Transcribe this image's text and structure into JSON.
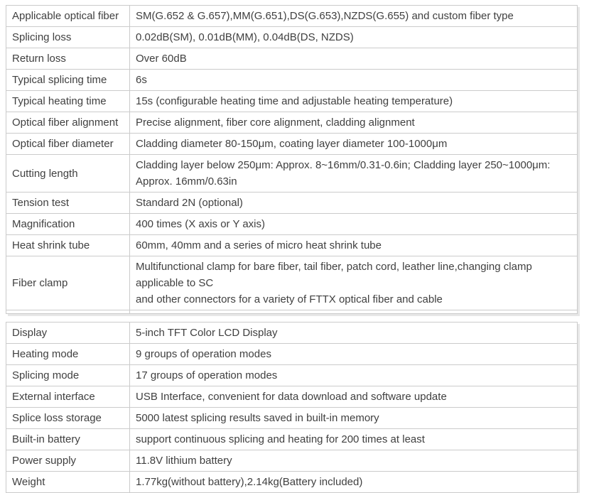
{
  "page": {
    "background": "#ffffff",
    "text_color": "#404040",
    "grid_border_color": "#cbcbcb",
    "outer_edge_color": "#e7e7e7"
  },
  "tables": [
    {
      "name": "splicing-specs-table",
      "trailing_spacer": true,
      "rows": [
        {
          "label": "Applicable optical fiber",
          "value": "SM(G.652 & G.657),MM(G.651),DS(G.653),NZDS(G.655) and custom fiber type"
        },
        {
          "label": "Splicing loss",
          "value": "0.02dB(SM), 0.01dB(MM), 0.04dB(DS, NZDS)"
        },
        {
          "label": "Return loss",
          "value": "Over 60dB"
        },
        {
          "label": "Typical splicing time",
          "value": "6s"
        },
        {
          "label": "Typical heating time",
          "value": "15s (configurable heating time and adjustable heating temperature)"
        },
        {
          "label": "Optical fiber alignment",
          "value": "Precise alignment, fiber core alignment, cladding alignment"
        },
        {
          "label": "Optical fiber diameter",
          "value": "Cladding diameter 80-150μm, coating layer diameter 100-1000μm"
        },
        {
          "label": "Cutting length",
          "value": "Cladding layer below 250μm: Approx. 8~16mm/0.31-0.6in; Cladding layer 250~1000μm:\nApprox. 16mm/0.63in"
        },
        {
          "label": "Tension test",
          "value": "Standard 2N (optional)"
        },
        {
          "label": "Magnification",
          "value": "400 times (X axis or Y axis)"
        },
        {
          "label": "Heat shrink tube",
          "value": "60mm, 40mm and a series of micro heat shrink tube"
        },
        {
          "label": "Fiber clamp",
          "value": "Multifunctional clamp for bare fiber, tail fiber, patch cord, leather line,changing clamp applicable to SC\nand other connectors for a variety of FTTX optical fiber and cable"
        }
      ]
    },
    {
      "name": "device-specs-table",
      "trailing_spacer": false,
      "rows": [
        {
          "label": "Display",
          "value": "5-inch TFT Color LCD Display"
        },
        {
          "label": "Heating mode",
          "value": "9 groups of operation modes"
        },
        {
          "label": "Splicing mode",
          "value": "17 groups of operation modes"
        },
        {
          "label": "External interface",
          "value": "USB Interface, convenient for data download and software update"
        },
        {
          "label": "Splice loss storage",
          "value": "5000 latest splicing results saved in built-in memory"
        },
        {
          "label": "Built-in battery",
          "value": "support continuous splicing and heating for 200 times at least"
        },
        {
          "label": "Power supply",
          "value": "11.8V lithium battery"
        },
        {
          "label": "Weight",
          "value": "1.77kg(without battery),2.14kg(Battery included)"
        }
      ]
    }
  ]
}
